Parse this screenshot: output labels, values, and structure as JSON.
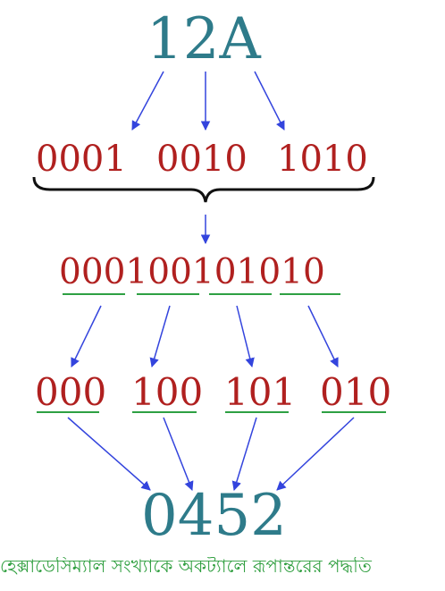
{
  "diagram": {
    "hex_value": "12A",
    "nibbles": [
      "0001",
      "0010",
      "1010"
    ],
    "binary_combined": "000100101010",
    "triplets": [
      "000",
      "100",
      "101",
      "010"
    ],
    "octal_value": "0452",
    "caption": "হেক্সাডেসিম্যাল সংখ্যাকে অকট্যালে রূপান্তরের পদ্ধতি"
  },
  "colors": {
    "number": "#2e7b8a",
    "digits": "#b0201f",
    "arrow": "#3344dd",
    "underline": "#2ea043",
    "caption": "#2e9e3e"
  }
}
